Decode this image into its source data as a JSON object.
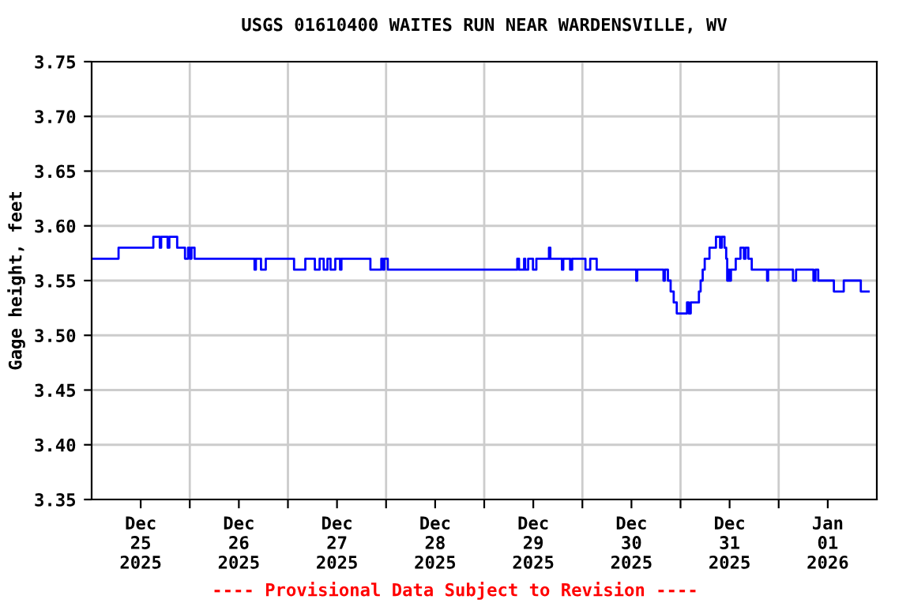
{
  "chart_data": {
    "type": "line",
    "title": "USGS 01610400 WAITES RUN NEAR WARDENSVILLE, WV",
    "ylabel": "Gage height, feet",
    "annotations": [
      "---- Provisional Data Subject to Revision ----"
    ],
    "xlim": [
      "2025-12-25T00:00",
      "2026-01-02T00:00"
    ],
    "xticks": [
      {
        "value": "2025-12-25T12:00",
        "label": "Dec\n25\n2025"
      },
      {
        "value": "2025-12-26T00:00",
        "label": null
      },
      {
        "value": "2025-12-26T12:00",
        "label": "Dec\n26\n2025"
      },
      {
        "value": "2025-12-27T00:00",
        "label": null
      },
      {
        "value": "2025-12-27T12:00",
        "label": "Dec\n27\n2025"
      },
      {
        "value": "2025-12-28T00:00",
        "label": null
      },
      {
        "value": "2025-12-28T12:00",
        "label": "Dec\n28\n2025"
      },
      {
        "value": "2025-12-29T00:00",
        "label": null
      },
      {
        "value": "2025-12-29T12:00",
        "label": "Dec\n29\n2025"
      },
      {
        "value": "2025-12-30T00:00",
        "label": null
      },
      {
        "value": "2025-12-30T12:00",
        "label": "Dec\n30\n2025"
      },
      {
        "value": "2025-12-31T00:00",
        "label": null
      },
      {
        "value": "2025-12-31T12:00",
        "label": "Dec\n31\n2025"
      },
      {
        "value": "2026-01-01T00:00",
        "label": null
      },
      {
        "value": "2026-01-01T12:00",
        "label": "Jan\n01\n2026"
      }
    ],
    "ylim": [
      3.35,
      3.75
    ],
    "yticks": [
      {
        "value": 3.35,
        "label": "3.35"
      },
      {
        "value": 3.4,
        "label": "3.40"
      },
      {
        "value": 3.45,
        "label": "3.45"
      },
      {
        "value": 3.5,
        "label": "3.50"
      },
      {
        "value": 3.55,
        "label": "3.55"
      },
      {
        "value": 3.6,
        "label": "3.60"
      },
      {
        "value": 3.65,
        "label": "3.65"
      },
      {
        "value": 3.7,
        "label": "3.70"
      },
      {
        "value": 3.75,
        "label": "3.75"
      }
    ],
    "grid": true,
    "line_style": "solid",
    "marker": "none",
    "series": [
      {
        "color": "#0000ff",
        "x": [
          "2025-12-25T00:15",
          "2025-12-25T06:35",
          "2025-12-25T06:35",
          "2025-12-25T15:05",
          "2025-12-25T15:05",
          "2025-12-25T16:40",
          "2025-12-25T16:40",
          "2025-12-25T17:00",
          "2025-12-25T17:00",
          "2025-12-25T18:35",
          "2025-12-25T18:35",
          "2025-12-25T19:00",
          "2025-12-25T19:00",
          "2025-12-25T20:55",
          "2025-12-25T20:55",
          "2025-12-25T22:50",
          "2025-12-25T22:50",
          "2025-12-25T23:35",
          "2025-12-25T23:35",
          "2025-12-26T00:00",
          "2025-12-26T00:00",
          "2025-12-26T00:25",
          "2025-12-26T00:25",
          "2025-12-26T01:10",
          "2025-12-26T01:10",
          "2025-12-26T15:50",
          "2025-12-26T15:50",
          "2025-12-26T16:10",
          "2025-12-26T16:10",
          "2025-12-26T17:25",
          "2025-12-26T17:25",
          "2025-12-26T18:35",
          "2025-12-26T18:35",
          "2025-12-27T01:30",
          "2025-12-27T01:30",
          "2025-12-27T04:15",
          "2025-12-27T04:15",
          "2025-12-27T06:35",
          "2025-12-27T06:35",
          "2025-12-27T07:45",
          "2025-12-27T07:45",
          "2025-12-27T08:45",
          "2025-12-27T08:45",
          "2025-12-27T09:40",
          "2025-12-27T09:40",
          "2025-12-27T10:25",
          "2025-12-27T10:25",
          "2025-12-27T11:35",
          "2025-12-27T11:35",
          "2025-12-27T12:45",
          "2025-12-27T12:45",
          "2025-12-27T13:05",
          "2025-12-27T13:05",
          "2025-12-27T20:10",
          "2025-12-27T20:10",
          "2025-12-27T22:50",
          "2025-12-27T22:50",
          "2025-12-27T23:15",
          "2025-12-27T23:15",
          "2025-12-27T23:35",
          "2025-12-27T23:35",
          "2025-12-28T00:25",
          "2025-12-28T00:25",
          "2025-12-29T08:05",
          "2025-12-29T08:05",
          "2025-12-29T08:30",
          "2025-12-29T08:30",
          "2025-12-29T09:45",
          "2025-12-29T09:45",
          "2025-12-29T10:00",
          "2025-12-29T10:00",
          "2025-12-29T10:45",
          "2025-12-29T10:45",
          "2025-12-29T11:55",
          "2025-12-29T11:55",
          "2025-12-29T12:45",
          "2025-12-29T12:45",
          "2025-12-29T15:50",
          "2025-12-29T15:50",
          "2025-12-29T16:10",
          "2025-12-29T16:10",
          "2025-12-29T19:00",
          "2025-12-29T19:00",
          "2025-12-29T19:20",
          "2025-12-29T19:20",
          "2025-12-29T21:00",
          "2025-12-29T21:00",
          "2025-12-29T21:30",
          "2025-12-29T21:30",
          "2025-12-30T00:45",
          "2025-12-30T00:45",
          "2025-12-30T01:55",
          "2025-12-30T01:55",
          "2025-12-30T03:30",
          "2025-12-30T03:30",
          "2025-12-30T13:10",
          "2025-12-30T13:10",
          "2025-12-30T13:25",
          "2025-12-30T13:25",
          "2025-12-30T19:50",
          "2025-12-30T19:50",
          "2025-12-30T20:10",
          "2025-12-30T20:10",
          "2025-12-30T20:55",
          "2025-12-30T20:55",
          "2025-12-30T21:35",
          "2025-12-30T21:35",
          "2025-12-30T22:20",
          "2025-12-30T22:20",
          "2025-12-30T23:05",
          "2025-12-30T23:05",
          "2025-12-31T01:35",
          "2025-12-31T01:35",
          "2025-12-31T02:00",
          "2025-12-31T02:00",
          "2025-12-31T02:30",
          "2025-12-31T02:30",
          "2025-12-31T04:30",
          "2025-12-31T04:30",
          "2025-12-31T04:55",
          "2025-12-31T04:55",
          "2025-12-31T05:25",
          "2025-12-31T05:25",
          "2025-12-31T05:55",
          "2025-12-31T05:55",
          "2025-12-31T07:05",
          "2025-12-31T07:05",
          "2025-12-31T08:40",
          "2025-12-31T08:40",
          "2025-12-31T09:40",
          "2025-12-31T09:40",
          "2025-12-31T10:05",
          "2025-12-31T10:05",
          "2025-12-31T10:45",
          "2025-12-31T10:45",
          "2025-12-31T11:10",
          "2025-12-31T11:10",
          "2025-12-31T11:25",
          "2025-12-31T11:25",
          "2025-12-31T11:45",
          "2025-12-31T11:45",
          "2025-12-31T12:00",
          "2025-12-31T12:00",
          "2025-12-31T12:20",
          "2025-12-31T12:20",
          "2025-12-31T13:30",
          "2025-12-31T13:30",
          "2025-12-31T14:40",
          "2025-12-31T14:40",
          "2025-12-31T15:30",
          "2025-12-31T15:30",
          "2025-12-31T15:55",
          "2025-12-31T15:55",
          "2025-12-31T16:35",
          "2025-12-31T16:35",
          "2025-12-31T17:25",
          "2025-12-31T17:25",
          "2025-12-31T21:10",
          "2025-12-31T21:10",
          "2025-12-31T21:25",
          "2025-12-31T21:25",
          "2026-01-01T03:30",
          "2026-01-01T03:30",
          "2026-01-01T04:15",
          "2026-01-01T04:15",
          "2026-01-01T08:30",
          "2026-01-01T08:30",
          "2026-01-01T09:00",
          "2026-01-01T09:00",
          "2026-01-01T09:40",
          "2026-01-01T09:40",
          "2026-01-01T13:30",
          "2026-01-01T13:30",
          "2026-01-01T15:55",
          "2026-01-01T15:55",
          "2026-01-01T20:05",
          "2026-01-01T20:05",
          "2026-01-01T22:00"
        ],
        "values": [
          3.57,
          3.57,
          3.58,
          3.58,
          3.59,
          3.59,
          3.58,
          3.58,
          3.59,
          3.59,
          3.58,
          3.58,
          3.59,
          3.59,
          3.58,
          3.58,
          3.57,
          3.57,
          3.58,
          3.58,
          3.57,
          3.57,
          3.58,
          3.58,
          3.57,
          3.57,
          3.56,
          3.56,
          3.57,
          3.57,
          3.56,
          3.56,
          3.57,
          3.57,
          3.56,
          3.56,
          3.57,
          3.57,
          3.56,
          3.56,
          3.57,
          3.57,
          3.56,
          3.56,
          3.57,
          3.57,
          3.56,
          3.56,
          3.57,
          3.57,
          3.56,
          3.56,
          3.57,
          3.57,
          3.56,
          3.56,
          3.57,
          3.57,
          3.56,
          3.56,
          3.57,
          3.57,
          3.56,
          3.56,
          3.57,
          3.57,
          3.56,
          3.56,
          3.57,
          3.57,
          3.56,
          3.56,
          3.57,
          3.57,
          3.56,
          3.56,
          3.57,
          3.57,
          3.58,
          3.58,
          3.57,
          3.57,
          3.56,
          3.56,
          3.57,
          3.57,
          3.56,
          3.56,
          3.57,
          3.57,
          3.56,
          3.56,
          3.57,
          3.57,
          3.56,
          3.56,
          3.55,
          3.55,
          3.56,
          3.56,
          3.55,
          3.55,
          3.56,
          3.56,
          3.55,
          3.55,
          3.54,
          3.54,
          3.53,
          3.53,
          3.52,
          3.52,
          3.53,
          3.53,
          3.52,
          3.52,
          3.53,
          3.53,
          3.54,
          3.54,
          3.55,
          3.55,
          3.56,
          3.56,
          3.57,
          3.57,
          3.58,
          3.58,
          3.59,
          3.59,
          3.58,
          3.58,
          3.59,
          3.59,
          3.58,
          3.58,
          3.57,
          3.57,
          3.55,
          3.55,
          3.56,
          3.56,
          3.55,
          3.55,
          3.56,
          3.56,
          3.57,
          3.57,
          3.58,
          3.58,
          3.57,
          3.57,
          3.58,
          3.58,
          3.57,
          3.57,
          3.56,
          3.56,
          3.55,
          3.55,
          3.56,
          3.56,
          3.55,
          3.55,
          3.56,
          3.56,
          3.55,
          3.55,
          3.56,
          3.56,
          3.55,
          3.55,
          3.54,
          3.54,
          3.55,
          3.55,
          3.54,
          3.54
        ]
      }
    ]
  }
}
